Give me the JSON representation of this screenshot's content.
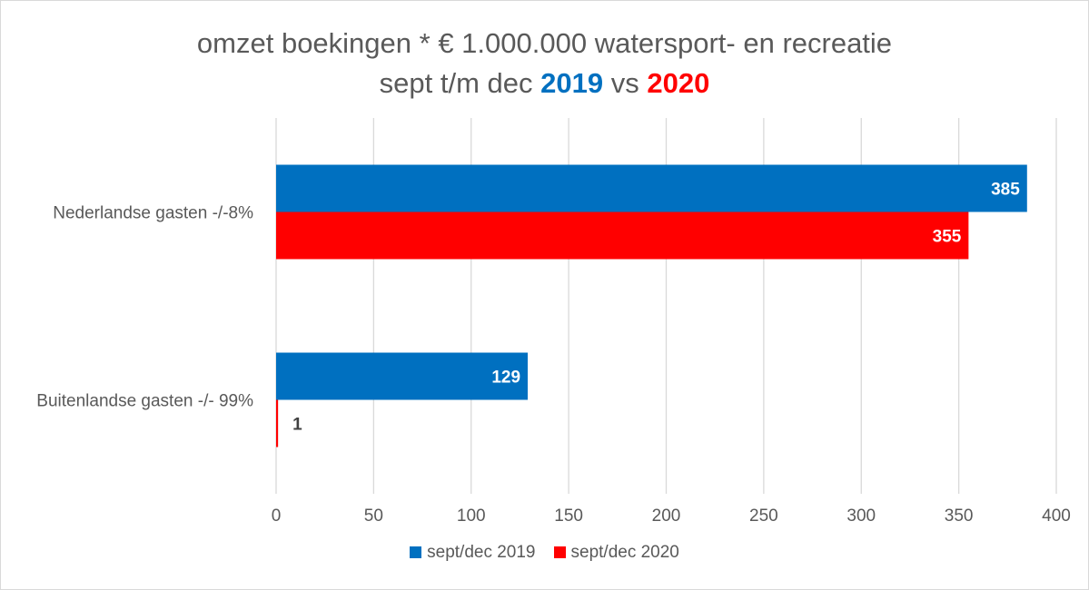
{
  "chart_data": {
    "type": "bar",
    "orientation": "horizontal",
    "title": {
      "line1": "omzet boekingen * € 1.000.000 watersport- en recreatie",
      "line2_prefix": "sept t/m dec ",
      "line2_year1": "2019",
      "line2_mid": " vs ",
      "line2_year2": "2020"
    },
    "categories": [
      "Nederlandse gasten   -/-8%",
      "Buitenlandse gasten  -/- 99%"
    ],
    "series": [
      {
        "name": "sept/dec 2019",
        "color": "#0070C0",
        "values": [
          385,
          129
        ]
      },
      {
        "name": "sept/dec 2020",
        "color": "#FF0000",
        "values": [
          355,
          1
        ]
      }
    ],
    "xlim": [
      0,
      400
    ],
    "ticks": [
      0,
      50,
      100,
      150,
      200,
      250,
      300,
      350,
      400
    ],
    "grid": true,
    "legend_position": "bottom",
    "title_colors": {
      "text": "#595959",
      "year1": "#0070C0",
      "year2": "#FF0000"
    }
  }
}
